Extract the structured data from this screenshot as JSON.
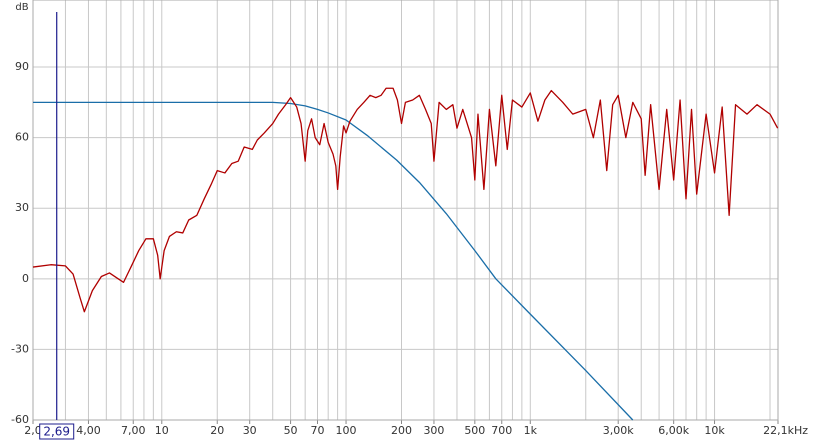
{
  "chart_data": {
    "type": "line",
    "ylabel": "dB",
    "xscale": "log",
    "grid": true,
    "xlim": [
      2,
      22100
    ],
    "ylim": [
      -60,
      118.5
    ],
    "yticks": [
      -60,
      -30,
      0,
      30,
      60,
      90
    ],
    "xticks": [
      {
        "value": 2,
        "label": "2,0"
      },
      {
        "value": 4,
        "label": "4,00"
      },
      {
        "value": 7,
        "label": "7,00"
      },
      10,
      20,
      30,
      50,
      70,
      100,
      200,
      300,
      500,
      700,
      {
        "value": 1000,
        "label": "1k"
      },
      {
        "value": 3000,
        "label": "3,00k"
      },
      {
        "value": 6000,
        "label": "6,00k"
      },
      {
        "value": 10000,
        "label": "10k"
      },
      {
        "value": 22100,
        "label": "22,1kHz"
      }
    ],
    "xgrid": [
      2,
      3,
      4,
      5,
      6,
      7,
      8,
      9,
      10,
      20,
      30,
      40,
      50,
      60,
      70,
      80,
      90,
      100,
      200,
      300,
      400,
      500,
      600,
      700,
      800,
      900,
      1000,
      2000,
      3000,
      4000,
      5000,
      6000,
      7000,
      8000,
      9000,
      10000,
      20000
    ],
    "cursor": {
      "value": 2.69,
      "label": "2,69",
      "color": "#1c1c8c"
    },
    "series": [
      {
        "color": "#1a6ea8",
        "x": [
          2,
          20,
          40,
          50,
          60,
          70,
          80,
          100,
          130,
          188,
          250,
          350,
          500,
          650,
          1000,
          2000,
          3600
        ],
        "values": [
          75,
          75,
          75,
          74.5,
          73.5,
          72,
          70.5,
          67.5,
          61,
          50.5,
          41,
          27.7,
          12,
          0,
          -15,
          -39,
          -60
        ]
      },
      {
        "color": "#b00000",
        "x": [
          2,
          2.5,
          3,
          3.3,
          3.6,
          3.8,
          4.2,
          4.7,
          5.2,
          5.8,
          6.2,
          6.8,
          7.5,
          8.2,
          9,
          9.5,
          9.8,
          10.3,
          11,
          12,
          13,
          14,
          15.5,
          17,
          18.5,
          20,
          22,
          24,
          26,
          28,
          31,
          33,
          36,
          40,
          43,
          47,
          50,
          52,
          54,
          57,
          60,
          62,
          65,
          68,
          72,
          76,
          80,
          85,
          88,
          90,
          93,
          97,
          100,
          105,
          115,
          125,
          135,
          145,
          155,
          165,
          180,
          190,
          200,
          210,
          230,
          250,
          270,
          290,
          300,
          320,
          350,
          380,
          400,
          430,
          480,
          500,
          520,
          560,
          600,
          650,
          700,
          750,
          800,
          900,
          1000,
          1100,
          1200,
          1300,
          1500,
          1700,
          2000,
          2200,
          2400,
          2600,
          2800,
          3000,
          3300,
          3600,
          4000,
          4200,
          4500,
          5000,
          5500,
          6000,
          6500,
          7000,
          7500,
          8000,
          9000,
          10000,
          11000,
          12000,
          13000,
          15000,
          17000,
          20000,
          22000
        ],
        "values": [
          5,
          6,
          5.5,
          2,
          -8,
          -14,
          -5,
          1,
          2.5,
          0,
          -1.5,
          5,
          12,
          17,
          17,
          10,
          0,
          12,
          18,
          20,
          19.5,
          25,
          27,
          34,
          40,
          46,
          45,
          49,
          50,
          56,
          55,
          59,
          62,
          66,
          70,
          74,
          77,
          75,
          73,
          66,
          50,
          63,
          68,
          60,
          57,
          66,
          58,
          53,
          48,
          38,
          52,
          65,
          62,
          67,
          72,
          75,
          78,
          77,
          78,
          81,
          81,
          76,
          66,
          75,
          76,
          78,
          72,
          66,
          50,
          75,
          72,
          74,
          64,
          72,
          60,
          42,
          70,
          38,
          72,
          48,
          78,
          55,
          76,
          73,
          79,
          67,
          76,
          80,
          75,
          70,
          72,
          60,
          76,
          46,
          74,
          78,
          60,
          75,
          68,
          44,
          74,
          38,
          72,
          42,
          76,
          34,
          72,
          36,
          70,
          45,
          73,
          27,
          74,
          70,
          74,
          70,
          64
        ]
      }
    ]
  }
}
